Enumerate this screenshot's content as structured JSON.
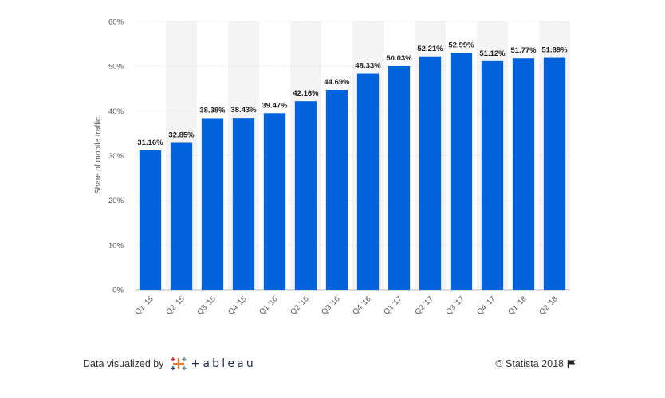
{
  "chart_data": {
    "type": "bar",
    "categories": [
      "Q1 '15",
      "Q2 '15",
      "Q3 '15",
      "Q4 '15",
      "Q1 '16",
      "Q2 '16",
      "Q3 '16",
      "Q4 '16",
      "Q1 '17",
      "Q2 '17",
      "Q3 '17",
      "Q4 '17",
      "Q1 '18",
      "Q2 '18"
    ],
    "values": [
      31.16,
      32.85,
      38.38,
      38.43,
      39.47,
      42.16,
      44.69,
      48.33,
      50.03,
      52.21,
      52.99,
      51.12,
      51.77,
      51.89
    ],
    "value_labels": [
      "31.16%",
      "32.85%",
      "38.38%",
      "38.43%",
      "39.47%",
      "42.16%",
      "44.69%",
      "48.33%",
      "50.03%",
      "52.21%",
      "52.99%",
      "51.12%",
      "51.77%",
      "51.89%"
    ],
    "ylabel": "Share of mobile traffic",
    "ylim": [
      0,
      60
    ],
    "yticks": [
      "0%",
      "10%",
      "20%",
      "30%",
      "40%",
      "50%",
      "60%"
    ],
    "grid": true,
    "bar_color": "#0063dc",
    "band_color": "#f4f4f4"
  },
  "footer": {
    "visualized_by": "Data visualized by",
    "logo_text": "+ableau",
    "logo_icon": "tableau-cross-icon",
    "copyright": "© Statista 2018",
    "flag_icon": "flag-icon"
  }
}
